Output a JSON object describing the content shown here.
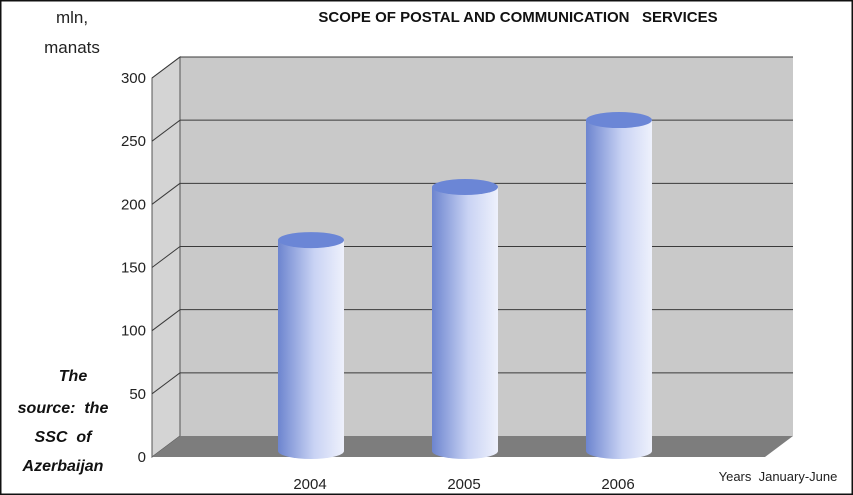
{
  "chart_data": {
    "type": "bar",
    "title": "SCOPE OF POSTAL AND COMMUNICATION   SERVICES",
    "ylabel_line1": "mln,",
    "ylabel_line2": "manats",
    "xlabel": "Years  January-June",
    "categories": [
      "2004",
      "2005",
      "2006"
    ],
    "values": [
      163,
      205,
      258
    ],
    "ylim": [
      0,
      300
    ],
    "yticks": [
      0,
      50,
      100,
      150,
      200,
      250,
      300
    ],
    "grid": true,
    "colors": {
      "bar_light": "#e6eafb",
      "bar_dark": "#6d85cf",
      "bar_top": "#6b86d6",
      "wall": "#c9c9c9",
      "floor": "#7d7d7d",
      "gridline": "#3a3a3a"
    }
  },
  "source_note": [
    "The",
    "source:  the",
    "SSC  of",
    "Azerbaijan"
  ]
}
